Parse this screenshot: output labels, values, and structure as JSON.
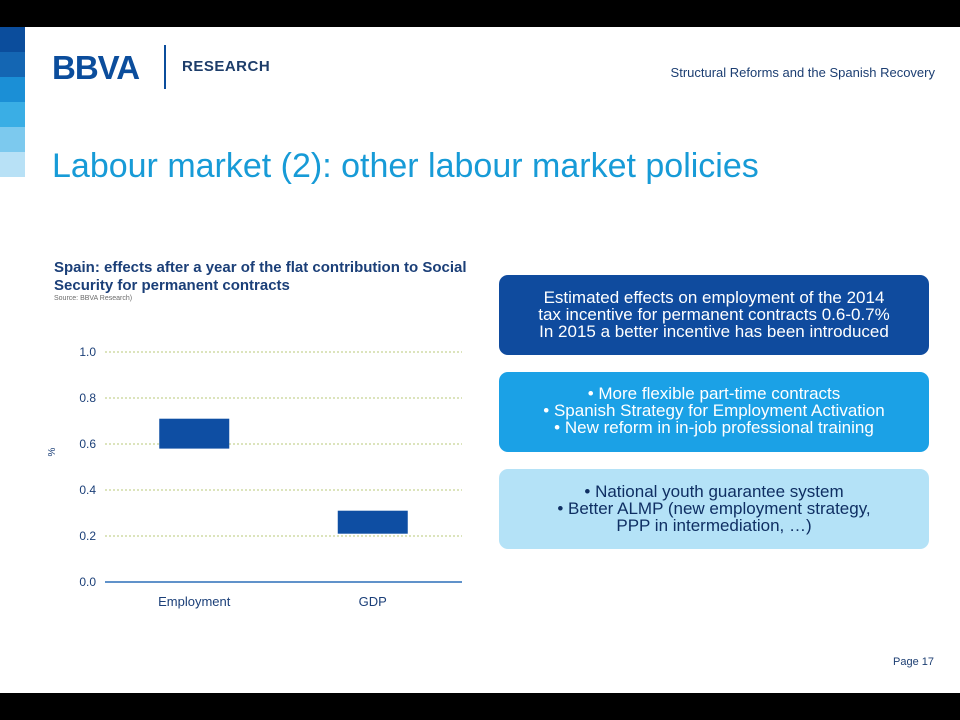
{
  "header": {
    "logo": "BBVA",
    "research": "RESEARCH",
    "subtitle": "Structural Reforms and the Spanish Recovery"
  },
  "stripe_colors": [
    "#0b4d9c",
    "#1466b3",
    "#1b8fd6",
    "#3aaee5",
    "#7cc9ee",
    "#b8e1f6"
  ],
  "slide_title": "Labour market (2): other labour market policies",
  "chart_data": {
    "type": "bar",
    "title": "Spain: effects after a year of the flat contribution to Social Security for permanent contracts",
    "source": "Source: BBVA Research)",
    "ylabel": "%",
    "categories": [
      "Employment",
      "GDP"
    ],
    "ranges": [
      {
        "low": 0.58,
        "high": 0.71
      },
      {
        "low": 0.21,
        "high": 0.31
      }
    ],
    "ylim": [
      0,
      1.0
    ],
    "yticks": [
      0.0,
      0.2,
      0.4,
      0.6,
      0.8,
      1.0
    ],
    "ytick_labels": [
      "0.0",
      "0.2",
      "0.4",
      "0.6",
      "0.8",
      "1.0"
    ],
    "grid": true,
    "bar_color": "#0e4ea3"
  },
  "boxes": [
    {
      "lines": [
        "Estimated effects on employment of the 2014",
        "tax incentive for permanent contracts 0.6-0.7%",
        "In 2015 a better incentive has been introduced"
      ]
    },
    {
      "lines": [
        "• More flexible part-time contracts",
        "• Spanish Strategy for Employment Activation",
        "• New reform in in-job professional training"
      ]
    },
    {
      "lines": [
        "• National youth guarantee system",
        "• Better ALMP (new employment strategy,",
        "PPP in intermediation, …)"
      ]
    }
  ],
  "page": "Page 17"
}
